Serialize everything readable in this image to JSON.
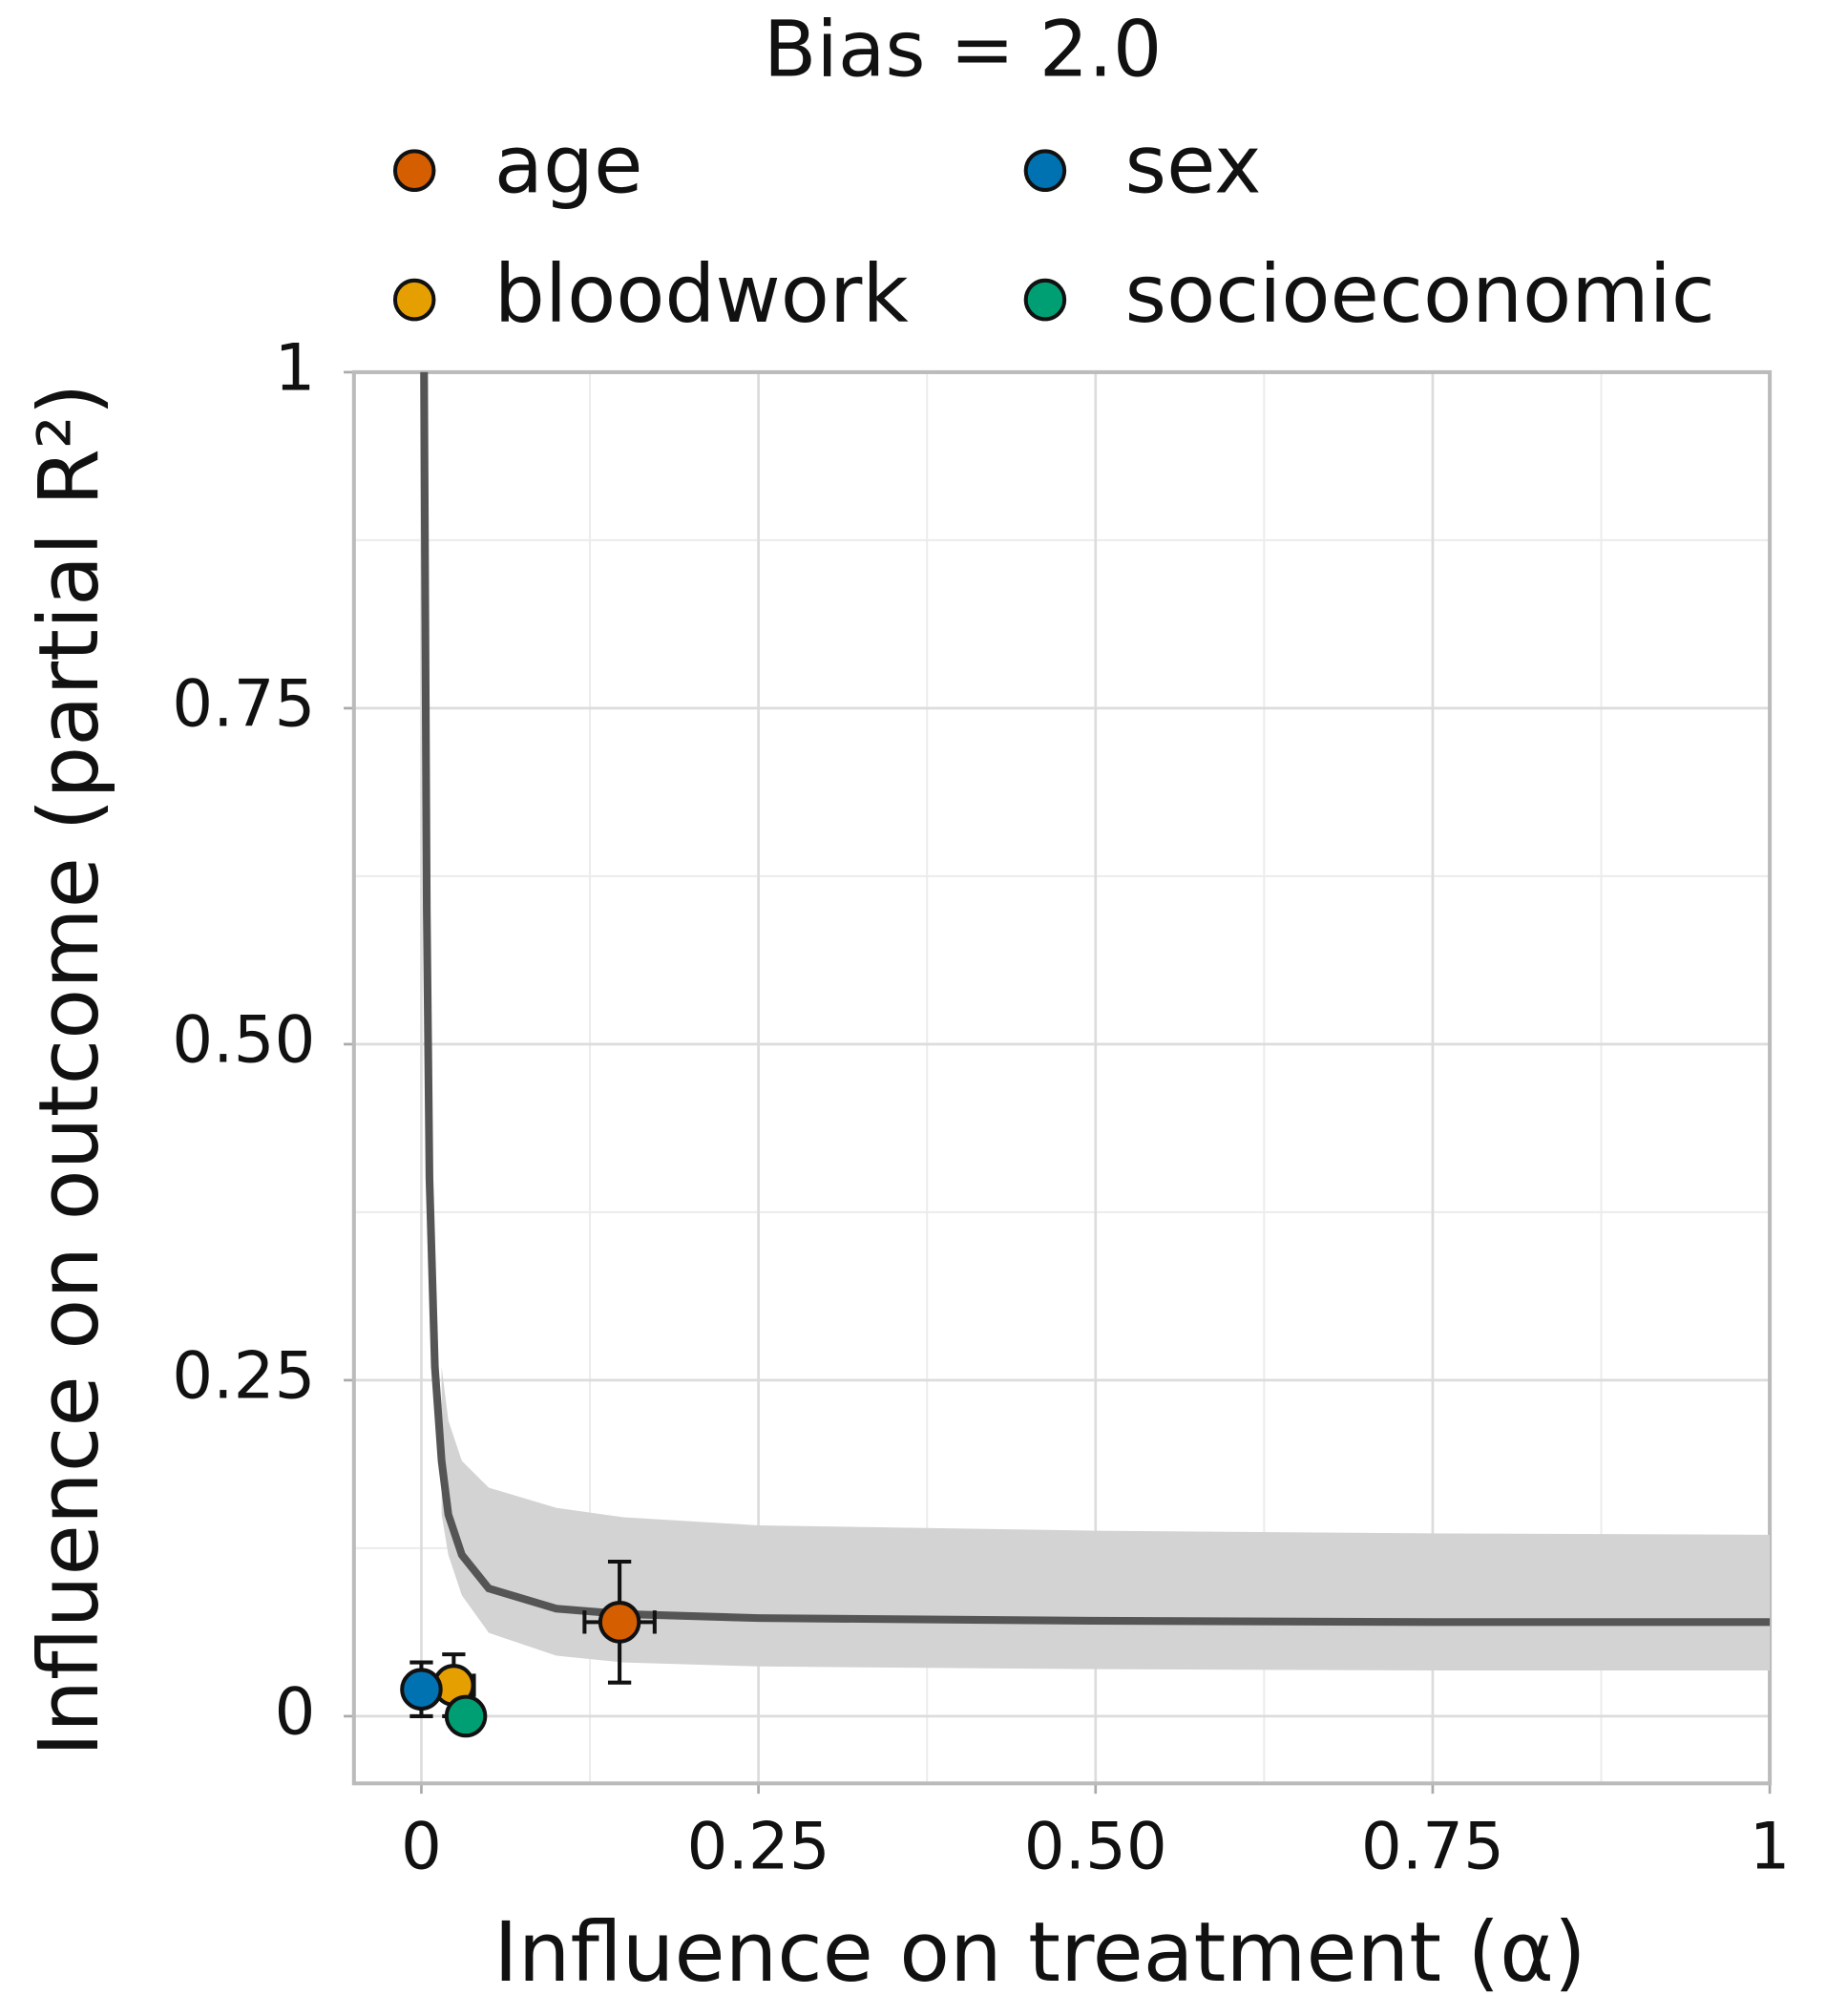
{
  "chart_data": {
    "type": "scatter",
    "title": "Bias = 2.0",
    "x_label": "Influence on treatment (α)",
    "y_label": "Influence on outcome (partial R²)",
    "xlim": [
      -0.05,
      1.0
    ],
    "ylim": [
      -0.05,
      1.0
    ],
    "xticks": [
      0,
      0.25,
      {
        "value": 0.5,
        "label": "0.50"
      },
      0.75,
      1
    ],
    "yticks": [
      0,
      0.25,
      {
        "value": 0.5,
        "label": "0.50"
      },
      0.75,
      1
    ],
    "minor_xticks": [
      0.125,
      0.375,
      0.625,
      0.875
    ],
    "minor_yticks": [
      0.125,
      0.375,
      0.625,
      0.875
    ],
    "grid": true,
    "legend": "top",
    "curve": {
      "color": "#555555",
      "x": [
        0.002,
        0.004,
        0.006,
        0.01,
        0.015,
        0.02,
        0.03,
        0.05,
        0.1,
        0.15,
        0.25,
        0.5,
        0.75,
        1.0
      ],
      "y": [
        1.0,
        0.6,
        0.4,
        0.26,
        0.19,
        0.15,
        0.12,
        0.095,
        0.08,
        0.076,
        0.073,
        0.071,
        0.07,
        0.07
      ]
    },
    "band": {
      "color": "#d3d3d3",
      "x": [
        0.015,
        0.02,
        0.03,
        0.05,
        0.1,
        0.15,
        0.25,
        0.5,
        0.75,
        1.0
      ],
      "upper": [
        0.26,
        0.22,
        0.19,
        0.17,
        0.155,
        0.148,
        0.142,
        0.138,
        0.136,
        0.135
      ],
      "lower": [
        0.15,
        0.12,
        0.09,
        0.062,
        0.045,
        0.04,
        0.037,
        0.035,
        0.034,
        0.034
      ]
    },
    "series": [
      {
        "name": "age",
        "color": "#d55e00",
        "x": [
          0.147
        ],
        "y": [
          0.07
        ],
        "xerr": [
          0.026
        ],
        "yerr": [
          0.045
        ]
      },
      {
        "name": "bloodwork",
        "color": "#e69f00",
        "x": [
          0.024
        ],
        "y": [
          0.023
        ],
        "xerr": [
          0.015
        ],
        "yerr": [
          0.023
        ]
      },
      {
        "name": "sex",
        "color": "#0072b2",
        "x": [
          0.0
        ],
        "y": [
          0.02
        ],
        "xerr": [
          0.008
        ],
        "yerr": [
          0.02
        ]
      },
      {
        "name": "socioeconomic",
        "color": "#009e73",
        "x": [
          0.033
        ],
        "y": [
          0.0
        ]
      }
    ]
  }
}
